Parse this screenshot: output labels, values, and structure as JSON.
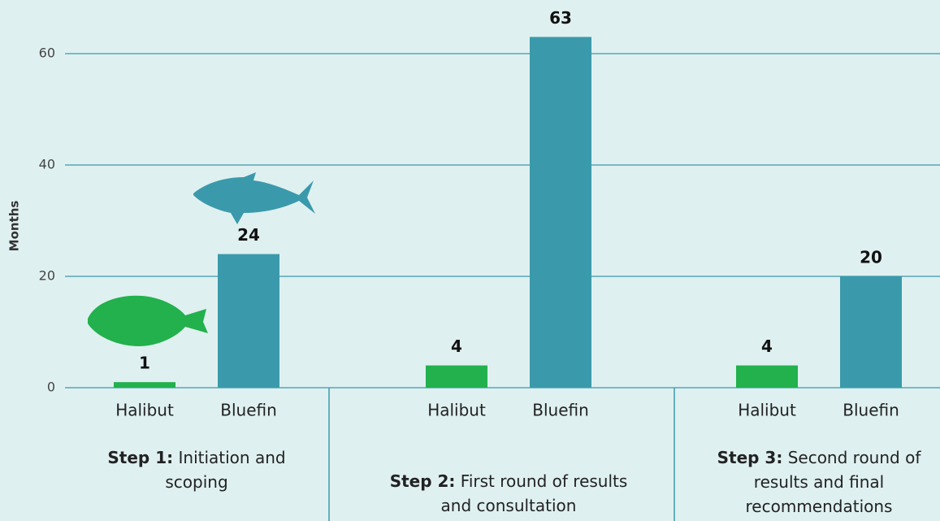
{
  "chart_data": {
    "type": "bar",
    "y_label": "Months",
    "groups": [
      {
        "step": "Step 1:",
        "description": "Initiation and scoping"
      },
      {
        "step": "Step 2:",
        "description": "First round of results and consultation"
      },
      {
        "step": "Step 3:",
        "description": "Second round of results and final recommendations"
      }
    ],
    "series": [
      {
        "name": "Halibut",
        "color": "#22b14c",
        "values": [
          1,
          4,
          4
        ]
      },
      {
        "name": "Bluefin",
        "color": "#3a9aab",
        "values": [
          24,
          63,
          20
        ]
      }
    ],
    "ylim": [
      0,
      70
    ],
    "yticks": [
      0,
      20,
      40,
      60
    ],
    "grid": true
  }
}
